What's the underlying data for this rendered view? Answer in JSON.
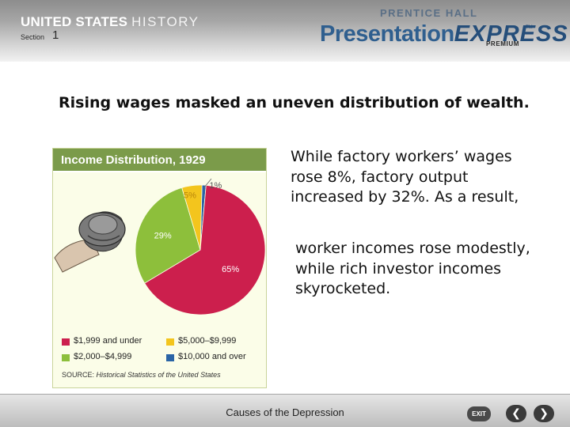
{
  "header": {
    "brand_main": "UNITED STATES ",
    "brand_sub": "HISTORY",
    "section_label": "Section",
    "section_number": "1",
    "publisher_top": "PRENTICE HALL",
    "product_name": "Presentation",
    "product_accent": "EXPRESS",
    "trademark": "TM",
    "product_tier": "PREMIUM"
  },
  "slide": {
    "headline": "Rising wages masked an uneven distribution of wealth.",
    "paragraph_1": "While factory workers’ wages rose 8%, factory output increased by 32%. As a result,",
    "paragraph_2": "worker incomes rose modestly, while rich investor incomes skyrocketed."
  },
  "chart_data": {
    "type": "pie",
    "title": "Income Distribution, 1929",
    "slices": [
      {
        "label": "$1,999 and under",
        "value": 65,
        "value_label": "65%",
        "color": "#cc1f4d"
      },
      {
        "label": "$2,000–$4,999",
        "value": 29,
        "value_label": "29%",
        "color": "#8dbf3b"
      },
      {
        "label": "$5,000–$9,999",
        "value": 5,
        "value_label": "5%",
        "color": "#f3c51d"
      },
      {
        "label": "$10,000 and over",
        "value": 1,
        "value_label": "1%",
        "color": "#2a64a6"
      }
    ],
    "source_label": "SOURCE: ",
    "source_text": "Historical Statistics of the United States"
  },
  "footer": {
    "title": "Causes of the Depression",
    "exit_label": "EXIT",
    "prev_symbol": "❮",
    "next_symbol": "❯"
  }
}
